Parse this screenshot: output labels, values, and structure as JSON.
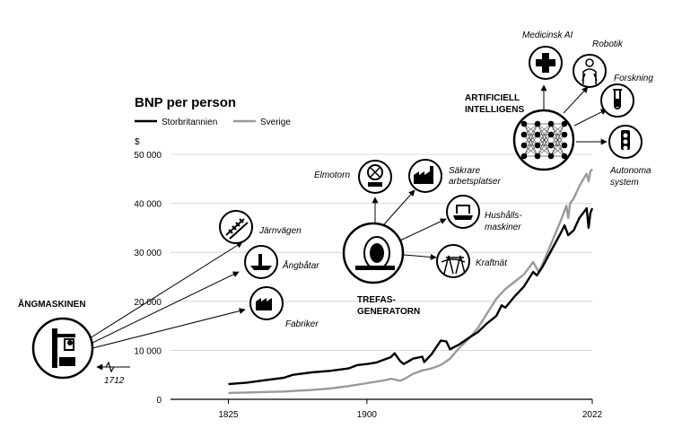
{
  "chart_data": {
    "type": "line",
    "title": "BNP per person",
    "ylabel": "$",
    "ylim": [
      0,
      50000
    ],
    "xlim": [
      1800,
      2022
    ],
    "yticks": [
      {
        "value": 0,
        "label": "0"
      },
      {
        "value": 10000,
        "label": "10 000"
      },
      {
        "value": 20000,
        "label": "20 000"
      },
      {
        "value": 30000,
        "label": "30 000"
      },
      {
        "value": 40000,
        "label": "40 000"
      },
      {
        "value": 50000,
        "label": "50 000"
      }
    ],
    "xticks": [
      {
        "value": 1825,
        "label": "1825"
      },
      {
        "value": 1900,
        "label": "1900"
      },
      {
        "value": 2022,
        "label": "2022"
      }
    ],
    "grid": true,
    "legend_position": "top-left",
    "series": [
      {
        "name": "Storbritannien",
        "color": "#000000",
        "points": [
          [
            1825,
            3100
          ],
          [
            1835,
            3400
          ],
          [
            1845,
            3900
          ],
          [
            1855,
            4400
          ],
          [
            1860,
            5000
          ],
          [
            1870,
            5500
          ],
          [
            1880,
            5800
          ],
          [
            1890,
            6300
          ],
          [
            1895,
            7000
          ],
          [
            1900,
            7200
          ],
          [
            1905,
            7500
          ],
          [
            1910,
            8200
          ],
          [
            1913,
            8600
          ],
          [
            1915,
            9400
          ],
          [
            1918,
            7800
          ],
          [
            1920,
            7200
          ],
          [
            1925,
            8300
          ],
          [
            1930,
            8700
          ],
          [
            1931,
            7600
          ],
          [
            1935,
            9200
          ],
          [
            1940,
            12000
          ],
          [
            1943,
            11800
          ],
          [
            1945,
            10200
          ],
          [
            1950,
            11200
          ],
          [
            1955,
            12500
          ],
          [
            1960,
            13700
          ],
          [
            1965,
            15500
          ],
          [
            1970,
            17000
          ],
          [
            1973,
            19200
          ],
          [
            1975,
            18700
          ],
          [
            1980,
            21000
          ],
          [
            1985,
            23000
          ],
          [
            1990,
            26000
          ],
          [
            1992,
            25300
          ],
          [
            1995,
            27000
          ],
          [
            2000,
            30500
          ],
          [
            2005,
            34000
          ],
          [
            2007,
            35500
          ],
          [
            2009,
            33500
          ],
          [
            2012,
            34500
          ],
          [
            2015,
            37000
          ],
          [
            2018,
            38500
          ],
          [
            2019,
            39000
          ],
          [
            2020,
            35000
          ],
          [
            2021,
            38000
          ],
          [
            2022,
            39000
          ]
        ]
      },
      {
        "name": "Sverige",
        "color": "#9a9a9a",
        "points": [
          [
            1825,
            1300
          ],
          [
            1835,
            1400
          ],
          [
            1845,
            1500
          ],
          [
            1855,
            1600
          ],
          [
            1860,
            1700
          ],
          [
            1870,
            1900
          ],
          [
            1880,
            2200
          ],
          [
            1890,
            2700
          ],
          [
            1900,
            3300
          ],
          [
            1910,
            3900
          ],
          [
            1913,
            4200
          ],
          [
            1918,
            3800
          ],
          [
            1920,
            4100
          ],
          [
            1925,
            5200
          ],
          [
            1930,
            5900
          ],
          [
            1935,
            6300
          ],
          [
            1940,
            7000
          ],
          [
            1945,
            8300
          ],
          [
            1950,
            10500
          ],
          [
            1955,
            12300
          ],
          [
            1960,
            14500
          ],
          [
            1965,
            17500
          ],
          [
            1970,
            20500
          ],
          [
            1975,
            22500
          ],
          [
            1980,
            24000
          ],
          [
            1985,
            25500
          ],
          [
            1990,
            28000
          ],
          [
            1993,
            26000
          ],
          [
            1995,
            27500
          ],
          [
            2000,
            32000
          ],
          [
            2005,
            36500
          ],
          [
            2008,
            39500
          ],
          [
            2009,
            37000
          ],
          [
            2010,
            40000
          ],
          [
            2012,
            41000
          ],
          [
            2015,
            43500
          ],
          [
            2018,
            45500
          ],
          [
            2019,
            46000
          ],
          [
            2020,
            44500
          ],
          [
            2021,
            46500
          ],
          [
            2022,
            47000
          ]
        ]
      }
    ],
    "annotations": [
      {
        "id": "steam",
        "heading": "ÅNGMASKINEN",
        "year_label": "1712"
      },
      {
        "id": "rail",
        "label": "Järnvägen"
      },
      {
        "id": "steamboat",
        "label": "Ångbåtar"
      },
      {
        "id": "factory",
        "label": "Fabriker"
      },
      {
        "id": "generator",
        "heading_lines": [
          "TREFAS-",
          "GENERATORN"
        ]
      },
      {
        "id": "motor",
        "label": "Elmotorn"
      },
      {
        "id": "safer",
        "label_lines": [
          "Säkrare",
          "arbetsplatser"
        ]
      },
      {
        "id": "appliances",
        "label_lines": [
          "Hushålls-",
          "maskiner"
        ]
      },
      {
        "id": "grid",
        "label": "Kraftnät"
      },
      {
        "id": "ai",
        "heading_lines": [
          "ARTIFICIELL",
          "INTELLIGENS"
        ]
      },
      {
        "id": "medai",
        "label": "Medicinsk AI"
      },
      {
        "id": "robot",
        "label": "Robotik"
      },
      {
        "id": "research",
        "label": "Forskning"
      },
      {
        "id": "autonomous",
        "label_lines": [
          "Autonoma",
          "system"
        ]
      }
    ]
  }
}
